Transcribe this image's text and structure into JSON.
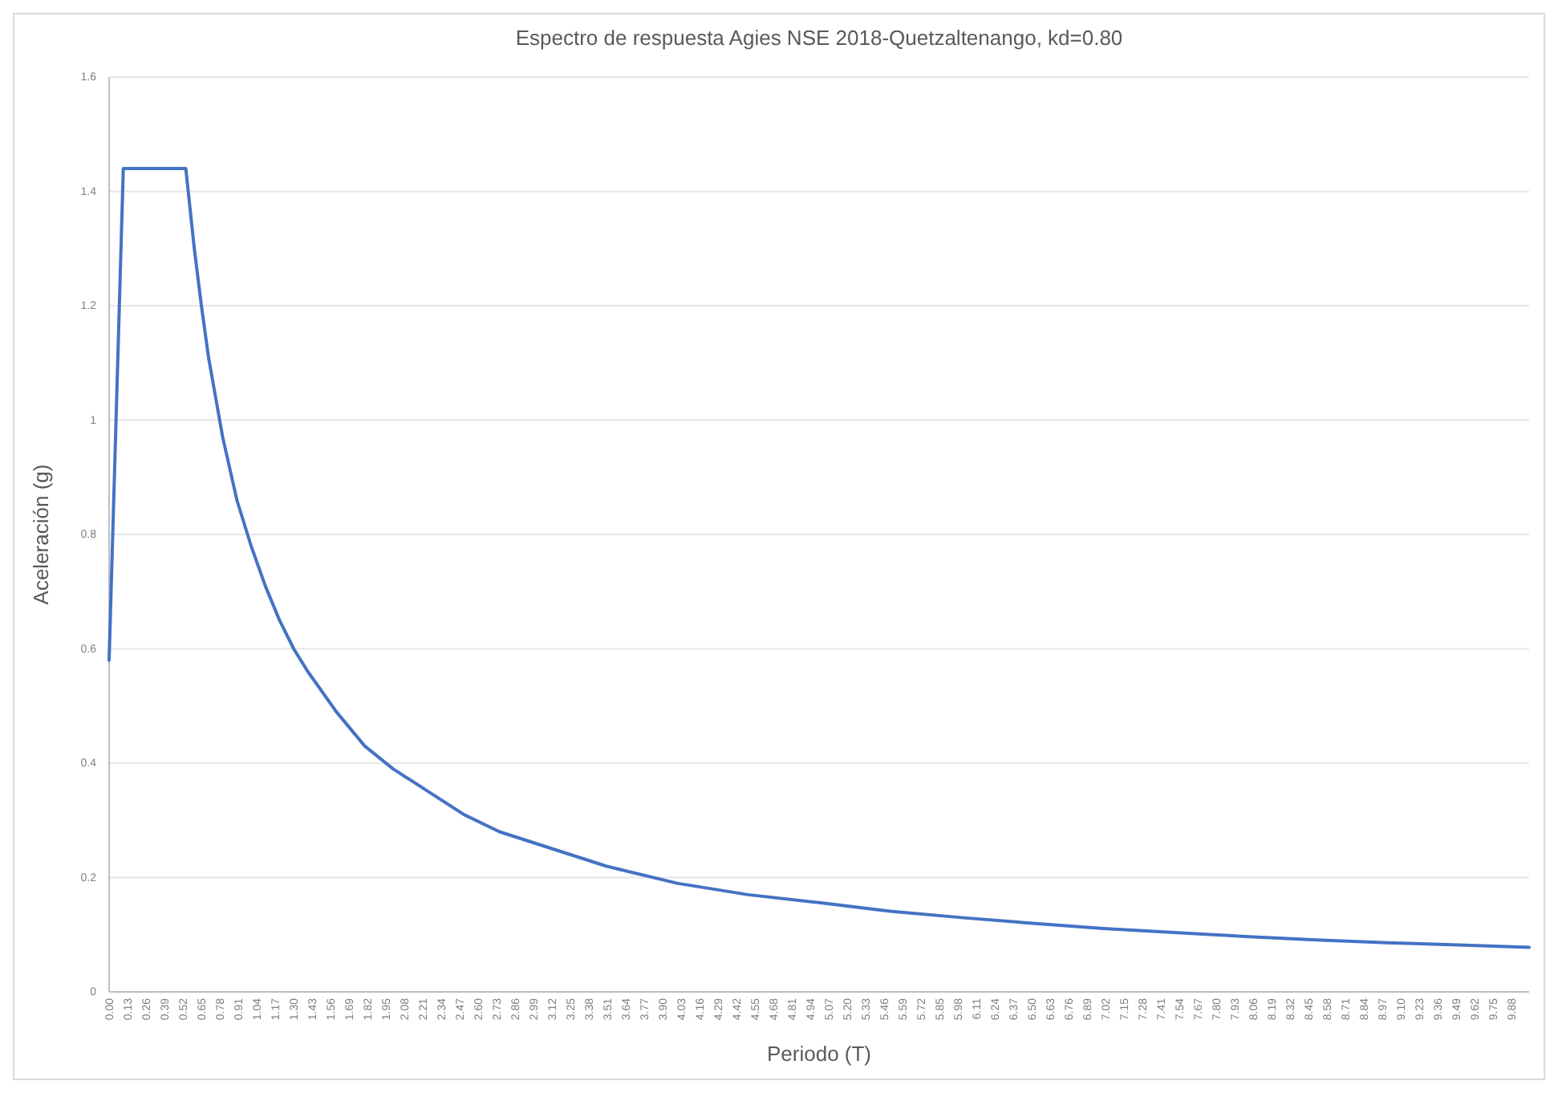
{
  "chart_data": {
    "type": "line",
    "title": "Espectro de respuesta Agies NSE 2018-Quetzaltenango, kd=0.80",
    "xlabel": "Periodo (T)",
    "ylabel": "Aceleración (g)",
    "x": [
      0,
      0.1,
      0.54,
      0.6,
      0.65,
      0.7,
      0.75,
      0.8,
      0.9,
      1.0,
      1.1,
      1.2,
      1.3,
      1.4,
      1.6,
      1.8,
      2.0,
      2.25,
      2.5,
      2.75,
      3.0,
      3.5,
      4.0,
      4.5,
      5.0,
      5.5,
      6.0,
      6.5,
      7.0,
      7.5,
      8.0,
      8.5,
      9.0,
      9.5,
      10.0
    ],
    "series": [
      {
        "color": "#4472c4",
        "values": [
          0.58,
          1.44,
          1.44,
          1.3,
          1.2,
          1.11,
          1.04,
          0.97,
          0.86,
          0.78,
          0.71,
          0.65,
          0.6,
          0.56,
          0.49,
          0.43,
          0.39,
          0.35,
          0.31,
          0.28,
          0.26,
          0.22,
          0.19,
          0.17,
          0.156,
          0.141,
          0.13,
          0.12,
          0.111,
          0.104,
          0.097,
          0.091,
          0.086,
          0.082,
          0.078
        ]
      }
    ],
    "xlim": [
      0,
      10
    ],
    "xticks": [
      {
        "value": 0,
        "label": "0.00"
      },
      0.13,
      0.26,
      0.39,
      0.52,
      0.65,
      0.78,
      0.91,
      1.04,
      1.17,
      {
        "value": 1.3,
        "label": "1.30"
      },
      1.43,
      1.56,
      1.69,
      1.82,
      1.95,
      2.08,
      2.21,
      2.34,
      2.47,
      {
        "value": 2.6,
        "label": "2.60"
      },
      2.73,
      2.86,
      2.99,
      3.12,
      3.25,
      3.38,
      3.51,
      3.64,
      3.77,
      {
        "value": 3.9,
        "label": "3.90"
      },
      4.03,
      4.16,
      4.29,
      4.42,
      4.55,
      4.68,
      4.81,
      4.94,
      5.07,
      {
        "value": 5.2,
        "label": "5.20"
      },
      5.33,
      5.46,
      5.59,
      5.72,
      5.85,
      5.98,
      6.11,
      6.24,
      6.37,
      {
        "value": 6.5,
        "label": "6.50"
      },
      6.63,
      6.76,
      6.89,
      7.02,
      7.15,
      7.28,
      7.41,
      7.54,
      7.67,
      {
        "value": 7.8,
        "label": "7.80"
      },
      7.93,
      8.06,
      8.19,
      8.32,
      8.45,
      8.58,
      8.71,
      8.84,
      8.97,
      {
        "value": 9.1,
        "label": "9.10"
      },
      9.23,
      9.36,
      9.49,
      9.62,
      9.75,
      9.88
    ],
    "ylim": [
      0,
      1.6
    ],
    "yticks": [
      0,
      0.2,
      0.4,
      0.6,
      0.8,
      1,
      1.2,
      1.4,
      1.6
    ],
    "grid": "y",
    "marker": "none",
    "line_style": "solid"
  }
}
